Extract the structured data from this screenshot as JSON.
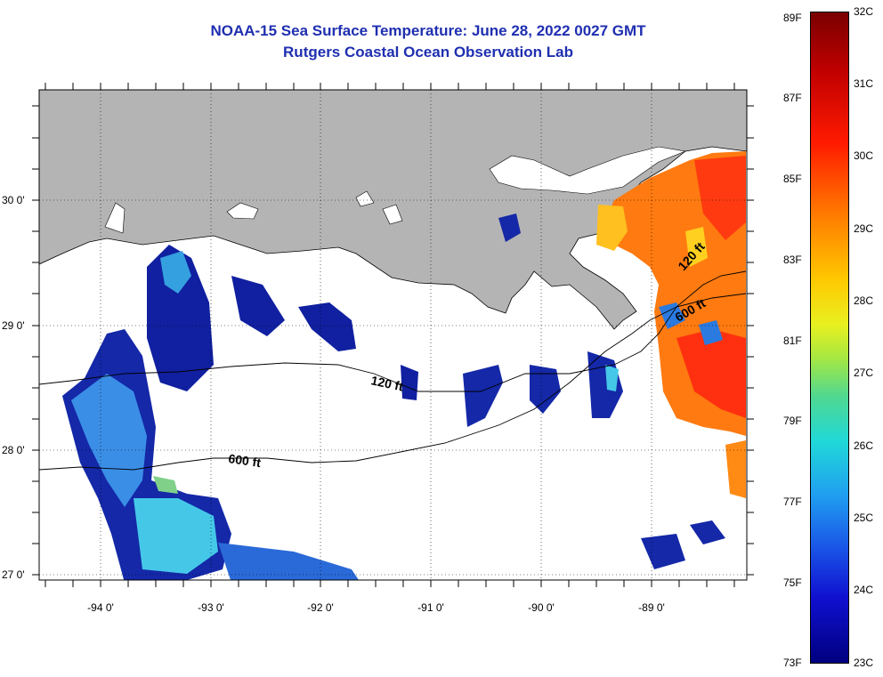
{
  "title": {
    "line1": "NOAA-15 Sea Surface Temperature:  June 28, 2022 0027 GMT",
    "line2": "Rutgers Coastal Ocean Observation Lab"
  },
  "colors": {
    "title": "#1f2fb0",
    "land": "#b4b4b4",
    "ocean_nodata": "#ffffff"
  },
  "map": {
    "lon_labels": [
      "-94 0'",
      "-93 0'",
      "-92 0'",
      "-91 0'",
      "-90 0'",
      "-89 0'"
    ],
    "lat_labels": [
      "30 0'",
      "29 0'",
      "28 0'",
      "27 0'"
    ],
    "lon_range": [
      -94.55,
      -88.0
    ],
    "lat_range": [
      26.92,
      30.86
    ],
    "contour_labels": [
      "120 ft",
      "600 ft",
      "120 ft",
      "600 ft"
    ]
  },
  "colorbar": {
    "fahrenheit_labels": [
      "89F",
      "87F",
      "85F",
      "83F",
      "81F",
      "79F",
      "77F",
      "75F",
      "73F"
    ],
    "celsius_labels": [
      "32C",
      "31C",
      "30C",
      "29C",
      "28C",
      "27C",
      "26C",
      "25C",
      "24C",
      "23C"
    ],
    "range_c": [
      23,
      32
    ]
  }
}
